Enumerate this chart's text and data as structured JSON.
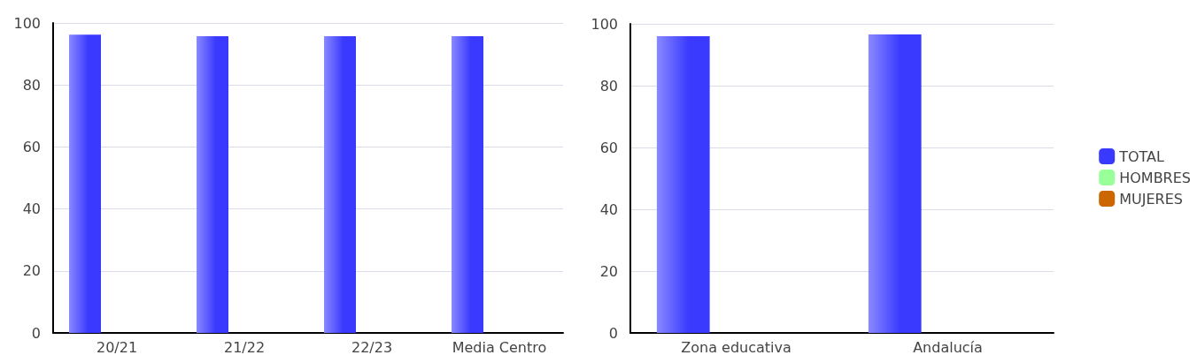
{
  "chart_data": [
    {
      "type": "bar",
      "categories": [
        "20/21",
        "21/22",
        "22/23",
        "Media Centro"
      ],
      "series": [
        {
          "color": "#3a3aff",
          "values": [
            96.2,
            95.7,
            95.7,
            95.7
          ]
        },
        {
          "color": "#99ff99",
          "values": [
            null,
            null,
            null,
            null
          ]
        },
        {
          "color": "#cc6600",
          "values": [
            null,
            null,
            null,
            null
          ]
        }
      ],
      "ylim": [
        0,
        100
      ],
      "yticks": [
        0,
        20,
        40,
        60,
        80,
        100
      ],
      "grid": "y",
      "legend": false
    },
    {
      "type": "bar",
      "categories": [
        "Zona educativa",
        "Andalucía"
      ],
      "series": [
        {
          "name": "TOTAL",
          "color": "#3a3aff",
          "values": [
            96.0,
            96.6
          ]
        },
        {
          "name": "HOMBRES",
          "color": "#99ff99",
          "values": [
            null,
            null
          ]
        },
        {
          "name": "MUJERES",
          "color": "#cc6600",
          "values": [
            null,
            null
          ]
        }
      ],
      "ylim": [
        0,
        100
      ],
      "yticks": [
        0,
        20,
        40,
        60,
        80,
        100
      ],
      "grid": "y",
      "legend": "right"
    }
  ]
}
